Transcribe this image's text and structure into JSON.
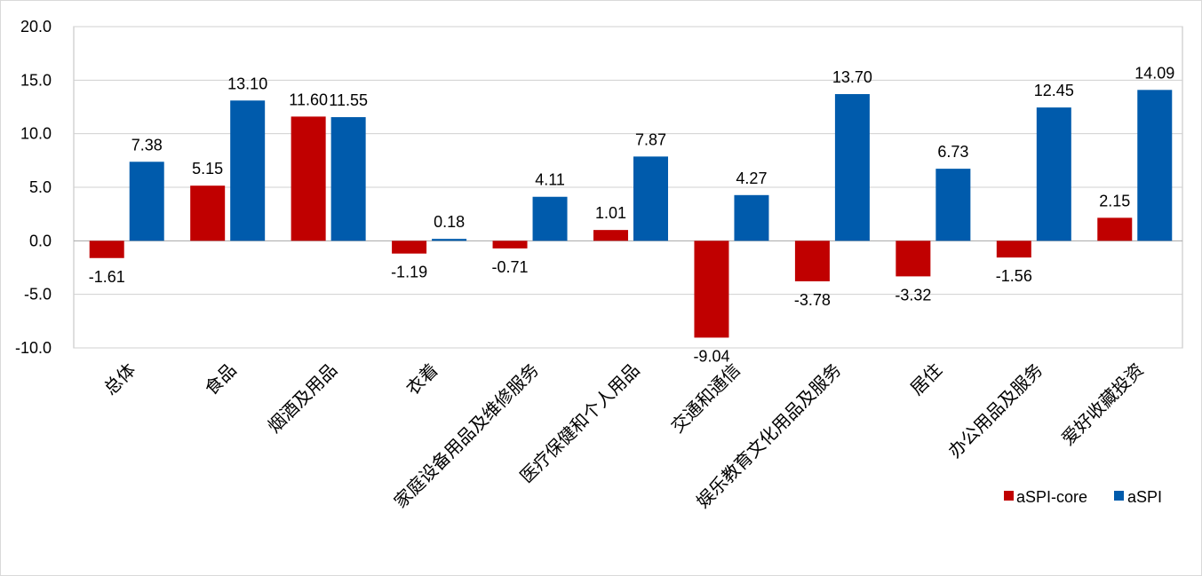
{
  "chart_data": {
    "type": "bar",
    "title": "",
    "xlabel": "",
    "ylabel": "",
    "ylim": [
      -10,
      20
    ],
    "yticks": [
      20,
      15,
      10,
      5,
      0,
      -5,
      -10
    ],
    "ytick_labels": [
      "20.0",
      "15.0",
      "10.0",
      "5.0",
      "0.0",
      "-5.0",
      "-10.0"
    ],
    "grid": true,
    "legend_position": "bottom-right",
    "categories": [
      "总体",
      "食品",
      "烟酒及用品",
      "衣着",
      "家庭设备用品及维修服务",
      "医疗保健和个人用品",
      "交通和通信",
      "娱乐教育文化用品及服务",
      "居住",
      "办公用品及服务",
      "爱好收藏投资"
    ],
    "series": [
      {
        "name": "aSPI-core",
        "color": "#C00000",
        "values": [
          -1.61,
          5.15,
          11.6,
          -1.19,
          -0.71,
          1.01,
          -9.04,
          -3.78,
          -3.32,
          -1.56,
          2.15
        ],
        "labels": [
          "-1.61",
          "5.15",
          "11.60",
          "-1.19",
          "-0.71",
          "1.01",
          "-9.04",
          "-3.78",
          "-3.32",
          "-1.56",
          "2.15"
        ]
      },
      {
        "name": "aSPI",
        "color": "#005BAC",
        "values": [
          7.38,
          13.1,
          11.55,
          0.18,
          4.11,
          7.87,
          4.27,
          13.7,
          6.73,
          12.45,
          14.09
        ],
        "labels": [
          "7.38",
          "13.10",
          "11.55",
          "0.18",
          "4.11",
          "7.87",
          "4.27",
          "13.70",
          "6.73",
          "12.45",
          "14.09"
        ]
      }
    ]
  }
}
